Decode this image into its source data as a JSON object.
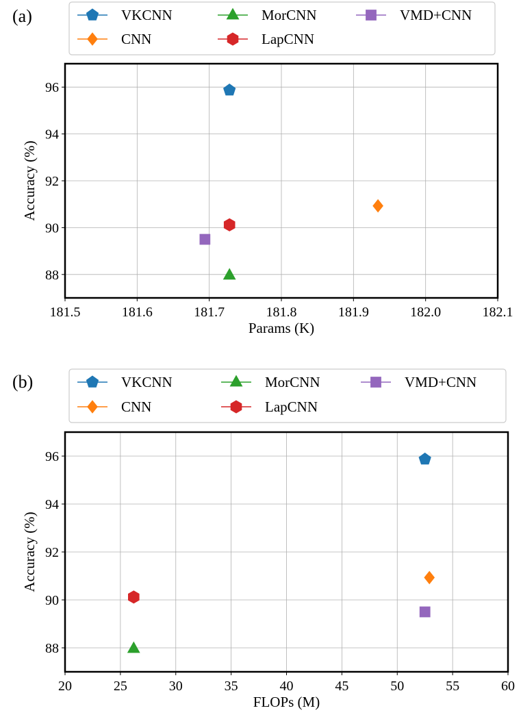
{
  "series_styles": {
    "VKCNN": {
      "color": "#1f77b4",
      "marker": "pentagon"
    },
    "CNN": {
      "color": "#ff7f0e",
      "marker": "diamond"
    },
    "MorCNN": {
      "color": "#2ca02c",
      "marker": "triangle"
    },
    "LapCNN": {
      "color": "#d62728",
      "marker": "hexagon"
    },
    "VMD+CNN": {
      "color": "#9467bd",
      "marker": "square"
    }
  },
  "chart_data": [
    {
      "panel_label": "(a)",
      "type": "scatter",
      "title": "",
      "xlabel": "Params (K)",
      "ylabel": "Accuracy (%)",
      "xlim": [
        181.5,
        182.1
      ],
      "ylim": [
        87.0,
        97.0
      ],
      "xticks": [
        "181.5",
        "181.6",
        "181.7",
        "181.8",
        "181.9",
        "182.0",
        "182.1"
      ],
      "yticks": [
        "88",
        "90",
        "92",
        "94",
        "96"
      ],
      "grid": true,
      "legend_position": "top",
      "legend_order": [
        "VKCNN",
        "CNN",
        "MorCNN",
        "LapCNN",
        "VMD+CNN"
      ],
      "series": [
        {
          "name": "VKCNN",
          "x": 181.728,
          "y": 95.87
        },
        {
          "name": "CNN",
          "x": 181.934,
          "y": 90.93
        },
        {
          "name": "MorCNN",
          "x": 181.728,
          "y": 87.97
        },
        {
          "name": "LapCNN",
          "x": 181.728,
          "y": 90.12
        },
        {
          "name": "VMD+CNN",
          "x": 181.694,
          "y": 89.5
        }
      ]
    },
    {
      "panel_label": "(b)",
      "type": "scatter",
      "title": "",
      "xlabel": "FLOPs (M)",
      "ylabel": "Accuracy (%)",
      "xlim": [
        20,
        60
      ],
      "ylim": [
        87.0,
        97.0
      ],
      "xticks": [
        "20",
        "25",
        "30",
        "35",
        "40",
        "45",
        "50",
        "55",
        "60"
      ],
      "yticks": [
        "88",
        "90",
        "92",
        "94",
        "96"
      ],
      "grid": true,
      "legend_position": "top",
      "legend_order": [
        "VKCNN",
        "CNN",
        "MorCNN",
        "LapCNN",
        "VMD+CNN"
      ],
      "series": [
        {
          "name": "VKCNN",
          "x": 52.5,
          "y": 95.87
        },
        {
          "name": "CNN",
          "x": 52.9,
          "y": 90.93
        },
        {
          "name": "MorCNN",
          "x": 26.2,
          "y": 87.97
        },
        {
          "name": "LapCNN",
          "x": 26.2,
          "y": 90.12
        },
        {
          "name": "VMD+CNN",
          "x": 52.5,
          "y": 89.5
        }
      ]
    }
  ]
}
